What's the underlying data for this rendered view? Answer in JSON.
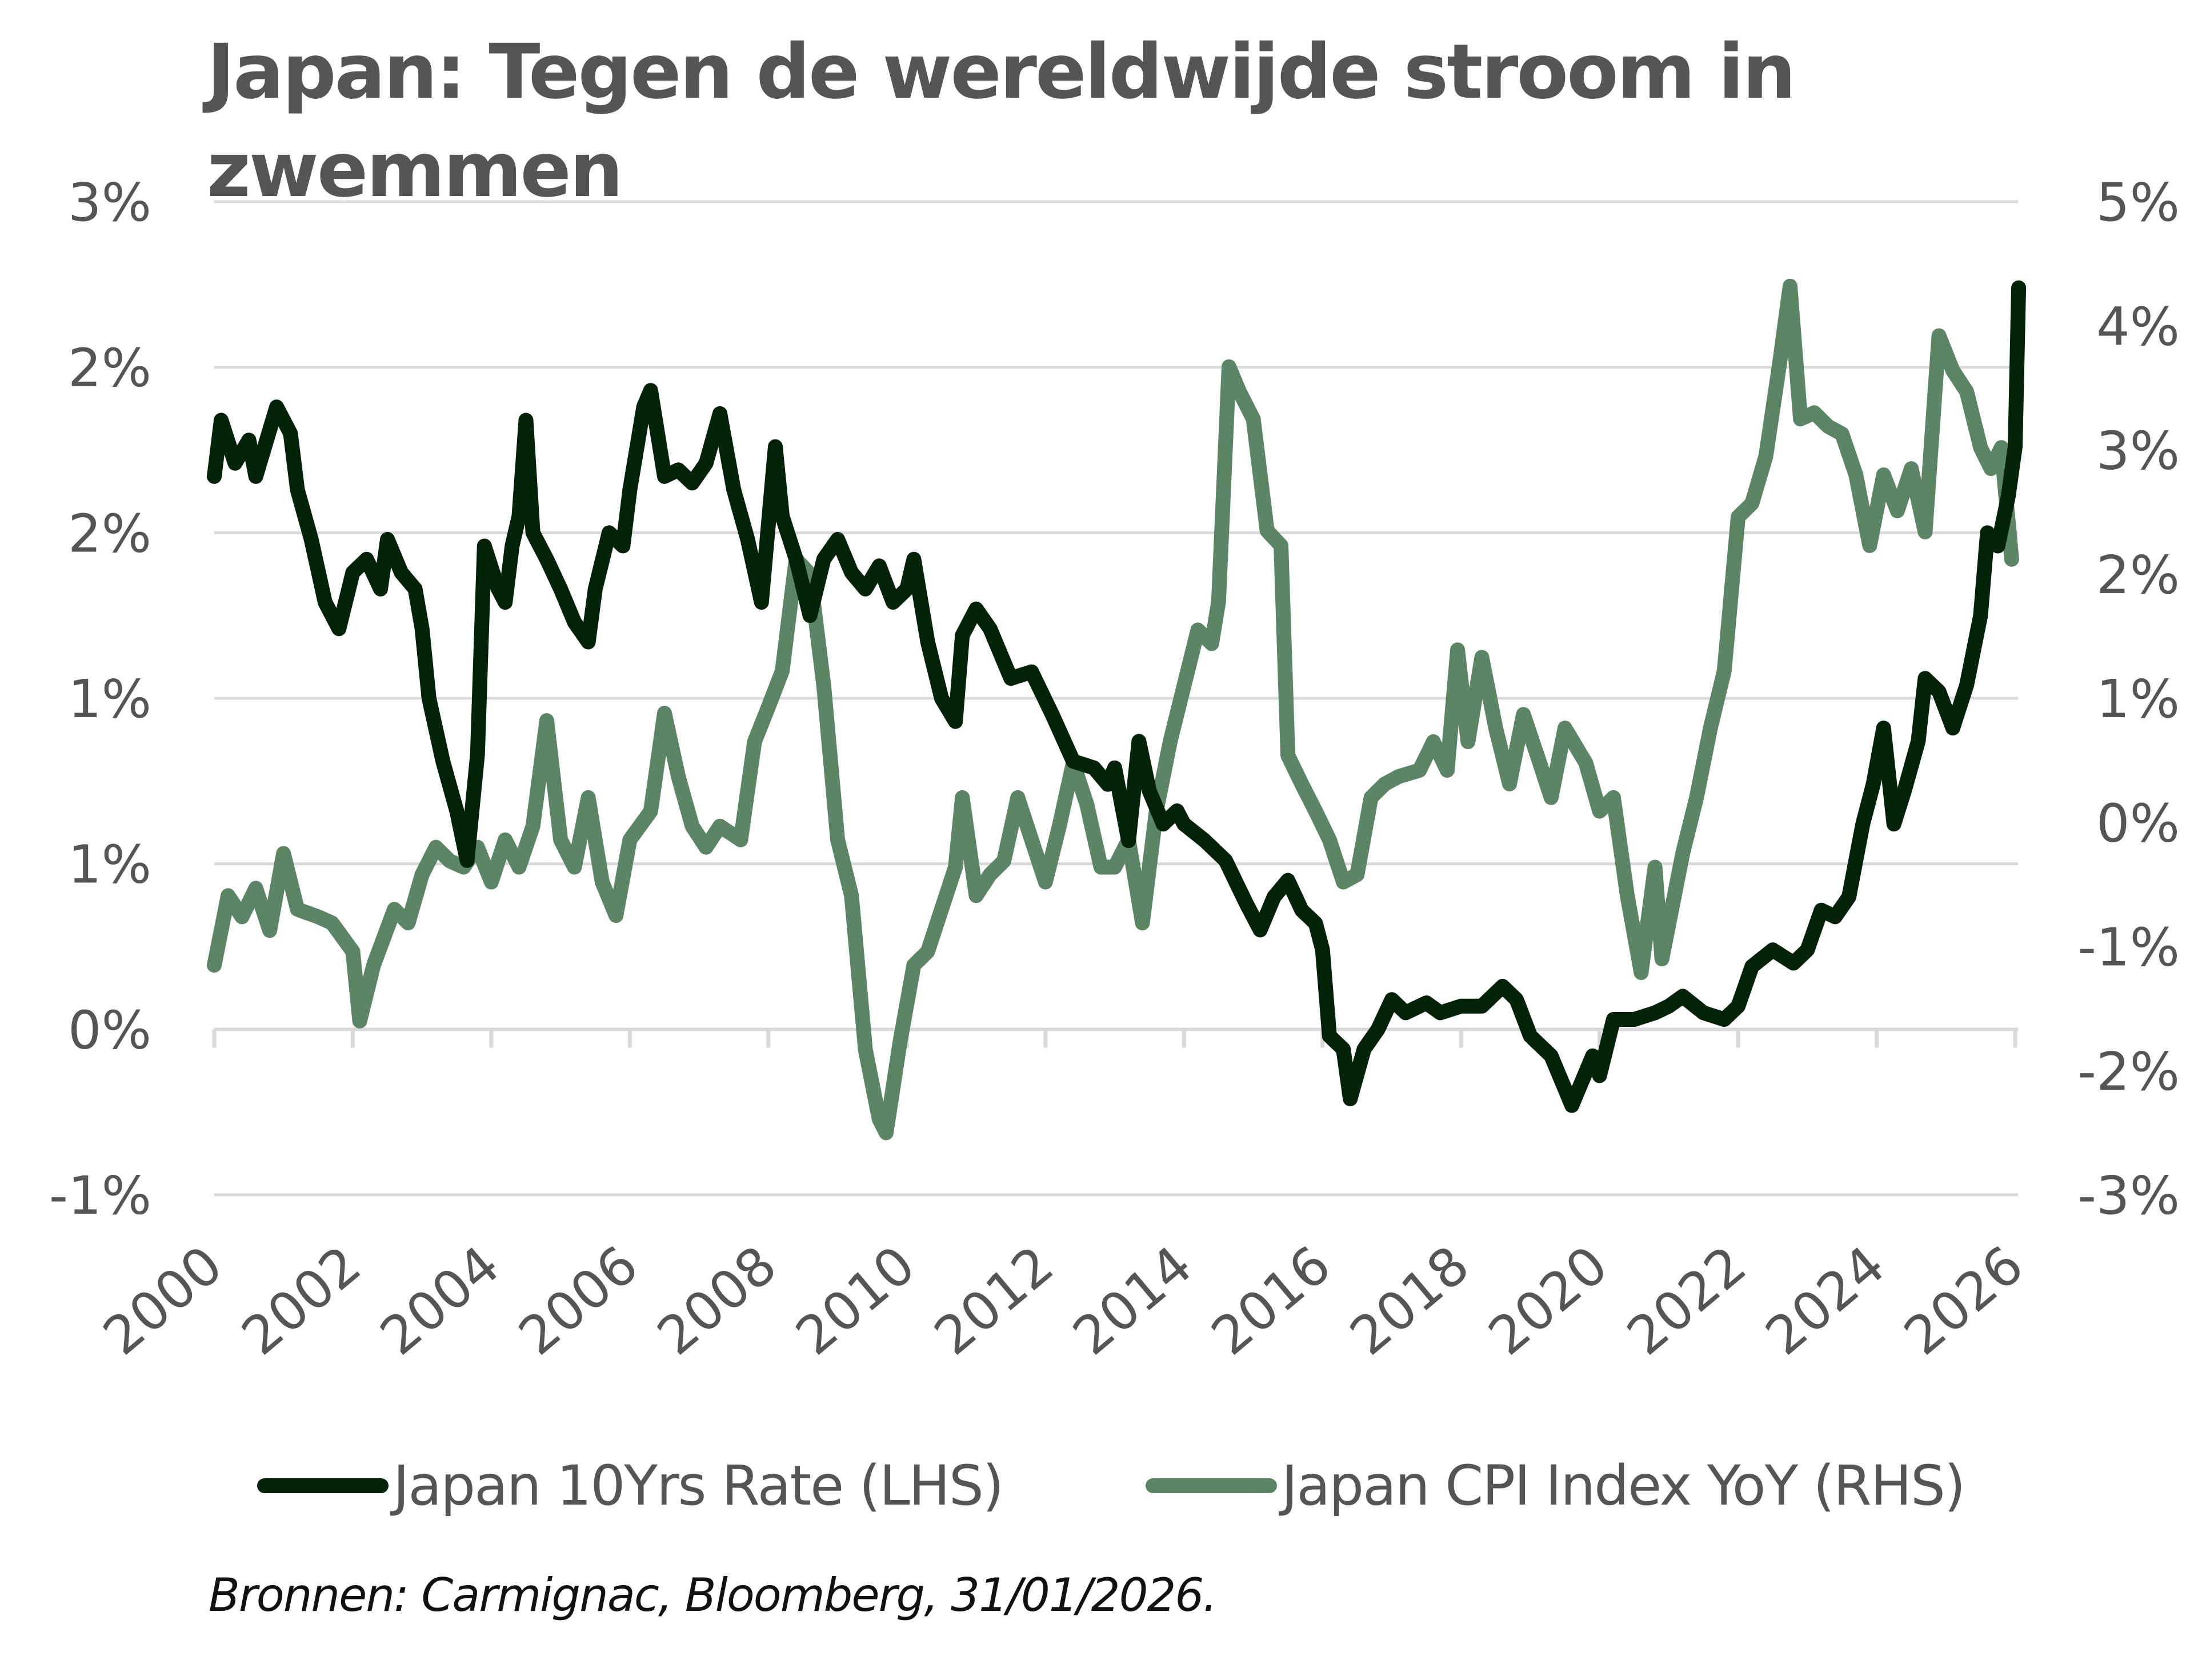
{
  "chart_data": {
    "type": "line",
    "title": "Japan: Tegen de wereldwijde stroom in zwemmen",
    "xlabel": "",
    "x_ticks": [
      "2000",
      "2002",
      "2004",
      "2006",
      "2008",
      "2010",
      "2012",
      "2014",
      "2016",
      "2018",
      "2020",
      "2022",
      "2024",
      "2026"
    ],
    "xlim": [
      2000,
      2026
    ],
    "left_axis": {
      "label": "",
      "ylim": [
        -0.5,
        2.5
      ],
      "ticks": [
        2.5,
        2.0,
        1.5,
        1.0,
        0.5,
        0.0,
        -0.5
      ],
      "tick_labels": [
        "3%",
        "2%",
        "2%",
        "1%",
        "1%",
        "0%",
        "-1%"
      ]
    },
    "right_axis": {
      "label": "",
      "ylim": [
        -3,
        5
      ],
      "ticks": [
        5,
        4,
        3,
        2,
        1,
        0,
        -1,
        -2,
        -3
      ],
      "tick_labels": [
        "5%",
        "4%",
        "3%",
        "2%",
        "1%",
        "0%",
        "-1%",
        "-2%",
        "-3%"
      ]
    },
    "grid": true,
    "legend_position": "bottom",
    "series": [
      {
        "name": "Japan 10Yrs Rate (LHS)",
        "axis": "left",
        "color": "#022308",
        "x": [
          2000.0,
          2000.1,
          2000.3,
          2000.5,
          2000.6,
          2000.9,
          2001.1,
          2001.2,
          2001.4,
          2001.6,
          2001.8,
          2002.0,
          2002.2,
          2002.4,
          2002.5,
          2002.7,
          2002.9,
          2003.0,
          2003.1,
          2003.3,
          2003.5,
          2003.65,
          2003.8,
          2003.9,
          2004.1,
          2004.2,
          2004.3,
          2004.4,
          2004.5,
          2004.6,
          2004.8,
          2005.0,
          2005.2,
          2005.4,
          2005.5,
          2005.7,
          2005.9,
          2006.0,
          2006.2,
          2006.3,
          2006.5,
          2006.7,
          2006.9,
          2007.1,
          2007.3,
          2007.5,
          2007.7,
          2007.9,
          2008.1,
          2008.2,
          2008.4,
          2008.6,
          2008.8,
          2009.0,
          2009.2,
          2009.4,
          2009.6,
          2009.8,
          2010.0,
          2010.1,
          2010.3,
          2010.5,
          2010.7,
          2010.8,
          2011.0,
          2011.2,
          2011.5,
          2011.8,
          2012.1,
          2012.4,
          2012.7,
          2012.9,
          2013.0,
          2013.2,
          2013.35,
          2013.5,
          2013.7,
          2013.9,
          2014.0,
          2014.3,
          2014.6,
          2014.9,
          2015.1,
          2015.3,
          2015.5,
          2015.7,
          2015.9,
          2016.0,
          2016.1,
          2016.3,
          2016.4,
          2016.6,
          2016.8,
          2017.0,
          2017.2,
          2017.5,
          2017.7,
          2018.0,
          2018.3,
          2018.6,
          2018.8,
          2019.0,
          2019.3,
          2019.6,
          2019.9,
          2020.0,
          2020.2,
          2020.5,
          2020.8,
          2021.0,
          2021.2,
          2021.5,
          2021.8,
          2022.0,
          2022.2,
          2022.5,
          2022.8,
          2023.0,
          2023.2,
          2023.4,
          2023.6,
          2023.8,
          2023.95,
          2024.1,
          2024.25,
          2024.4,
          2024.6,
          2024.7,
          2024.9,
          2025.1,
          2025.3,
          2025.5,
          2025.6,
          2025.75,
          2025.9,
          2026.0,
          2026.05
        ],
        "values": [
          1.67,
          1.84,
          1.71,
          1.78,
          1.67,
          1.88,
          1.8,
          1.63,
          1.48,
          1.29,
          1.21,
          1.38,
          1.42,
          1.33,
          1.48,
          1.38,
          1.33,
          1.21,
          1.0,
          0.81,
          0.66,
          0.51,
          0.83,
          1.46,
          1.33,
          1.29,
          1.46,
          1.55,
          1.84,
          1.5,
          1.42,
          1.33,
          1.23,
          1.17,
          1.33,
          1.5,
          1.46,
          1.63,
          1.88,
          1.93,
          1.67,
          1.69,
          1.65,
          1.71,
          1.86,
          1.63,
          1.48,
          1.29,
          1.76,
          1.55,
          1.42,
          1.25,
          1.42,
          1.48,
          1.38,
          1.33,
          1.4,
          1.29,
          1.33,
          1.42,
          1.17,
          1.0,
          0.93,
          1.19,
          1.27,
          1.21,
          1.06,
          1.08,
          0.95,
          0.81,
          0.79,
          0.74,
          0.79,
          0.57,
          0.87,
          0.72,
          0.62,
          0.66,
          0.62,
          0.57,
          0.51,
          0.38,
          0.3,
          0.4,
          0.45,
          0.36,
          0.32,
          0.24,
          -0.02,
          -0.06,
          -0.21,
          -0.06,
          0.0,
          0.09,
          0.05,
          0.08,
          0.05,
          0.07,
          0.07,
          0.13,
          0.09,
          -0.02,
          -0.08,
          -0.23,
          -0.08,
          -0.14,
          0.03,
          0.03,
          0.05,
          0.07,
          0.1,
          0.05,
          0.03,
          0.07,
          0.19,
          0.24,
          0.2,
          0.24,
          0.36,
          0.34,
          0.4,
          0.62,
          0.74,
          0.91,
          0.62,
          0.72,
          0.87,
          1.06,
          1.02,
          0.91,
          1.04,
          1.25,
          1.5,
          1.46,
          1.61,
          1.76,
          2.24
        ]
      },
      {
        "name": "Japan CPI Index YoY (RHS)",
        "axis": "right",
        "color": "#5c8565",
        "x": [
          2000.0,
          2000.2,
          2000.4,
          2000.6,
          2000.8,
          2001.0,
          2001.2,
          2001.5,
          2001.7,
          2002.0,
          2002.1,
          2002.3,
          2002.6,
          2002.8,
          2003.0,
          2003.2,
          2003.4,
          2003.6,
          2003.8,
          2004.0,
          2004.2,
          2004.4,
          2004.6,
          2004.8,
          2005.0,
          2005.2,
          2005.4,
          2005.6,
          2005.8,
          2006.0,
          2006.3,
          2006.5,
          2006.7,
          2006.9,
          2007.1,
          2007.3,
          2007.6,
          2007.8,
          2008.0,
          2008.2,
          2008.4,
          2008.6,
          2008.8,
          2009.0,
          2009.2,
          2009.4,
          2009.6,
          2009.7,
          2009.9,
          2010.1,
          2010.3,
          2010.5,
          2010.7,
          2010.8,
          2011.0,
          2011.2,
          2011.4,
          2011.6,
          2011.8,
          2012.0,
          2012.2,
          2012.4,
          2012.6,
          2012.8,
          2013.0,
          2013.2,
          2013.4,
          2013.6,
          2013.8,
          2014.0,
          2014.2,
          2014.4,
          2014.5,
          2014.65,
          2014.8,
          2015.0,
          2015.2,
          2015.4,
          2015.5,
          2015.7,
          2015.9,
          2016.1,
          2016.3,
          2016.5,
          2016.7,
          2016.9,
          2017.1,
          2017.4,
          2017.6,
          2017.8,
          2017.95,
          2018.1,
          2018.3,
          2018.5,
          2018.7,
          2018.9,
          2019.1,
          2019.3,
          2019.5,
          2019.8,
          2020.0,
          2020.2,
          2020.4,
          2020.6,
          2020.8,
          2020.9,
          2021.2,
          2021.4,
          2021.6,
          2021.8,
          2022.0,
          2022.2,
          2022.4,
          2022.6,
          2022.75,
          2022.9,
          2023.1,
          2023.3,
          2023.5,
          2023.7,
          2023.9,
          2024.1,
          2024.3,
          2024.5,
          2024.7,
          2024.9,
          2025.1,
          2025.3,
          2025.5,
          2025.65,
          2025.8,
          2025.95
        ],
        "values": [
          -1.15,
          -0.59,
          -0.76,
          -0.53,
          -0.87,
          -0.25,
          -0.7,
          -0.76,
          -0.81,
          -1.04,
          -1.6,
          -1.15,
          -0.7,
          -0.81,
          -0.42,
          -0.2,
          -0.31,
          -0.36,
          -0.2,
          -0.48,
          -0.14,
          -0.36,
          -0.03,
          0.82,
          -0.14,
          -0.36,
          0.2,
          -0.48,
          -0.75,
          -0.14,
          0.09,
          0.88,
          0.37,
          -0.03,
          -0.2,
          -0.03,
          -0.14,
          0.65,
          0.93,
          1.22,
          2.12,
          2.0,
          1.1,
          -0.14,
          -0.59,
          -1.83,
          -2.39,
          -2.5,
          -1.77,
          -1.15,
          -1.04,
          -0.7,
          -0.36,
          0.2,
          -0.59,
          -0.42,
          -0.31,
          0.2,
          -0.14,
          -0.48,
          -0.03,
          0.48,
          0.14,
          -0.36,
          -0.36,
          -0.14,
          -0.81,
          0.09,
          0.65,
          1.1,
          1.55,
          1.44,
          1.78,
          3.67,
          3.47,
          3.25,
          2.35,
          2.23,
          0.54,
          0.31,
          0.09,
          -0.14,
          -0.48,
          -0.42,
          0.2,
          0.31,
          0.37,
          0.42,
          0.65,
          0.42,
          1.39,
          0.65,
          1.33,
          0.76,
          0.31,
          0.87,
          0.54,
          0.2,
          0.76,
          0.48,
          0.09,
          0.2,
          -0.59,
          -1.21,
          -0.36,
          -1.1,
          -0.25,
          0.2,
          0.76,
          1.22,
          2.46,
          2.57,
          2.95,
          3.7,
          4.32,
          3.25,
          3.3,
          3.19,
          3.13,
          2.8,
          2.23,
          2.8,
          2.51,
          2.85,
          2.34,
          3.92,
          3.64,
          3.47,
          3.02,
          2.85,
          3.02,
          2.12
        ]
      }
    ]
  },
  "title": "Japan: Tegen de wereldwijde stroom in zwemmen",
  "legend": {
    "items": [
      {
        "label": "Japan 10Yrs Rate (LHS)",
        "color": "#022308"
      },
      {
        "label": "Japan CPI Index YoY (RHS)",
        "color": "#5c8565"
      }
    ]
  },
  "source_note": "Bronnen: Carmignac, Bloomberg, 31/01/2026."
}
